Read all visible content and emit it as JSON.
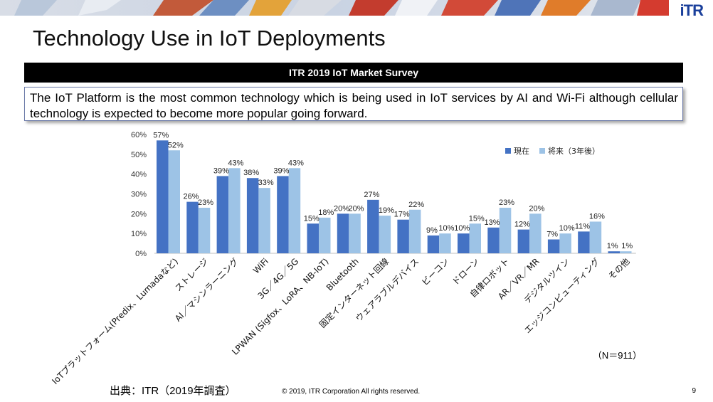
{
  "header": {
    "logo": "iTR",
    "title": "Technology Use in IoT Deployments",
    "survey_label": "ITR 2019 IoT Market Survey",
    "summary": "The IoT Platform is the most common technology which is being used in IoT services by AI and Wi-Fi although cellular technology is expected to become more popular going forward."
  },
  "chart_data": {
    "type": "bar",
    "categories": [
      "IoTプラットフォーム(Predix、Lumadaなど)",
      "ストレージ",
      "AI／マシンラーニング",
      "WiFi",
      "3G／4G／5G",
      "LPWAN (Sigfox、LoRA、NB-IoT)",
      "Bluetooth",
      "固定インターネット回線",
      "ウェアラブルデバイス",
      "ビーコン",
      "ドローン",
      "自律ロボット",
      "AR／VR／MR",
      "デジタルツイン",
      "エッジコンピューティング",
      "その他"
    ],
    "series": [
      {
        "name": "現在",
        "color": "#4472c4",
        "values": [
          57,
          26,
          39,
          38,
          39,
          15,
          20,
          27,
          17,
          9,
          10,
          13,
          12,
          7,
          11,
          1
        ],
        "labels": [
          "57%",
          "26%",
          "39%",
          "38%",
          "39%",
          "15%",
          "20%",
          "27%",
          "17%",
          "9%",
          "10%",
          "13%",
          "12%",
          "7%",
          "11%",
          "1%"
        ]
      },
      {
        "name": "将来（3年後）",
        "color": "#9dc3e6",
        "values": [
          52,
          23,
          43,
          33,
          43,
          18,
          20,
          19,
          22,
          10,
          15,
          23,
          20,
          10,
          16,
          1
        ],
        "labels": [
          "52%",
          "23%",
          "43%",
          "33%",
          "43%",
          "18%",
          "20%",
          "19%",
          "22%",
          "10%",
          "15%",
          "23%",
          "20%",
          "10%",
          "16%",
          "1%"
        ]
      }
    ],
    "y_ticks": [
      "0%",
      "10%",
      "20%",
      "30%",
      "40%",
      "50%",
      "60%"
    ],
    "ylim": [
      0,
      60
    ],
    "grid": false,
    "legend": "top-right"
  },
  "footer": {
    "n_note": "（N＝911）",
    "source": "出典：ITR（2019年調査）",
    "copyright": "© 2019, ITR Corporation  All rights reserved.",
    "page_number": "9"
  }
}
